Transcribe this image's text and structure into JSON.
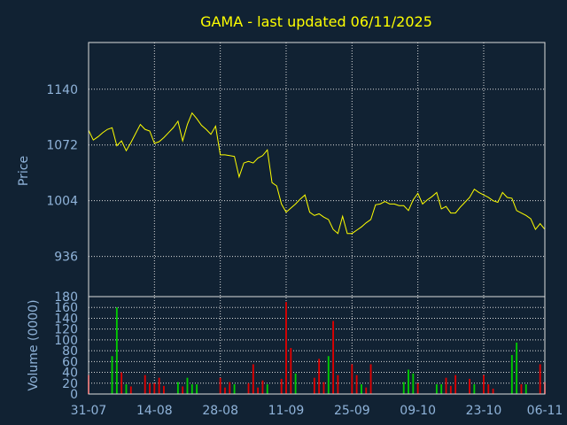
{
  "chart_data": {
    "type": "line",
    "title": "GAMA - last updated 06/11/2025",
    "colors": {
      "background": "#112233",
      "grid": "#dddddd",
      "price_line": "#ffff00",
      "volume_up": "#00cc00",
      "volume_down": "#dd0000",
      "text": "#8fb3d9",
      "title": "#ffff00"
    },
    "price_panel": {
      "ylabel": "Price",
      "ylim": [
        887,
        1197
      ],
      "yticks": [
        {
          "value": 936,
          "label": "936"
        },
        {
          "value": 1004,
          "label": "1004"
        },
        {
          "value": 1072,
          "label": "1072"
        },
        {
          "value": 1140,
          "label": "1140"
        }
      ],
      "series": [
        {
          "x": [
            0,
            1,
            2,
            3,
            4,
            5,
            6,
            7,
            8,
            9,
            10,
            11,
            12,
            13,
            14,
            15,
            16,
            17,
            18,
            19,
            20,
            21,
            22,
            23,
            24,
            25,
            26,
            27,
            28,
            29,
            30,
            31,
            32,
            33,
            34,
            35,
            36,
            37,
            38,
            39,
            40,
            41,
            42,
            43,
            44,
            45,
            46,
            47,
            48,
            49,
            50,
            51,
            52,
            53,
            54,
            55,
            56,
            57,
            58,
            59,
            60,
            61,
            62,
            63,
            64,
            65,
            66,
            67,
            68,
            69,
            70,
            71,
            72,
            73,
            74,
            75,
            76,
            77,
            78,
            79,
            80,
            81,
            82,
            83,
            84,
            85,
            86,
            87,
            88,
            89,
            90,
            91,
            92,
            93,
            94,
            95,
            96,
            97
          ],
          "values": [
            1090,
            1078,
            1082,
            1087,
            1091,
            1093,
            1071,
            1077,
            1065,
            1075,
            1086,
            1097,
            1091,
            1089,
            1074,
            1076,
            1081,
            1087,
            1093,
            1101,
            1077,
            1097,
            1111,
            1104,
            1096,
            1091,
            1085,
            1095,
            1060,
            1060,
            1059,
            1058,
            1033,
            1050,
            1052,
            1050,
            1056,
            1059,
            1066,
            1026,
            1022,
            1000,
            990,
            995,
            1000,
            1006,
            1011,
            990,
            986,
            988,
            984,
            981,
            969,
            964,
            985,
            964,
            964,
            968,
            972,
            977,
            981,
            999,
            1000,
            1003,
            1000,
            1000,
            998,
            998,
            992,
            1005,
            1013,
            1000,
            1005,
            1009,
            1014,
            994,
            997,
            989,
            989,
            996,
            1002,
            1008,
            1018,
            1014,
            1011,
            1008,
            1004,
            1002,
            1014,
            1008,
            1007,
            992,
            989,
            986,
            982,
            969,
            976,
            969
          ]
        }
      ]
    },
    "volume_panel": {
      "ylabel": "Volume (0000)",
      "ylim": [
        0,
        180
      ],
      "yticks": [
        {
          "value": 0,
          "label": "0"
        },
        {
          "value": 20,
          "label": "20"
        },
        {
          "value": 40,
          "label": "40"
        },
        {
          "value": 60,
          "label": "60"
        },
        {
          "value": 80,
          "label": "80"
        },
        {
          "value": 100,
          "label": "100"
        },
        {
          "value": 120,
          "label": "120"
        },
        {
          "value": 140,
          "label": "140"
        },
        {
          "value": 160,
          "label": "160"
        },
        {
          "value": 180,
          "label": "180"
        }
      ],
      "values": [
        35,
        0,
        0,
        0,
        0,
        70,
        160,
        40,
        18,
        14,
        0,
        0,
        35,
        20,
        20,
        30,
        15,
        0,
        0,
        22,
        14,
        30,
        18,
        18,
        0,
        0,
        0,
        0,
        30,
        12,
        22,
        18,
        0,
        0,
        20,
        55,
        12,
        25,
        18,
        0,
        0,
        28,
        170,
        85,
        38,
        0,
        0,
        0,
        30,
        65,
        22,
        70,
        135,
        35,
        0,
        0,
        55,
        35,
        18,
        12,
        55,
        0,
        0,
        0,
        0,
        0,
        0,
        22,
        45,
        38,
        20,
        0,
        0,
        0,
        18,
        18,
        30,
        15,
        35,
        0,
        0,
        28,
        18,
        0,
        35,
        18,
        10,
        0,
        0,
        0,
        72,
        95,
        18,
        18,
        0,
        0,
        55,
        22
      ],
      "up": [
        false,
        false,
        false,
        false,
        false,
        true,
        true,
        false,
        true,
        false,
        false,
        false,
        false,
        false,
        false,
        false,
        false,
        false,
        false,
        true,
        false,
        true,
        true,
        true,
        false,
        false,
        false,
        false,
        false,
        false,
        false,
        true,
        false,
        false,
        false,
        false,
        false,
        false,
        true,
        false,
        false,
        false,
        false,
        false,
        true,
        false,
        false,
        false,
        false,
        false,
        false,
        true,
        false,
        false,
        false,
        false,
        false,
        false,
        true,
        false,
        false,
        false,
        false,
        false,
        false,
        false,
        false,
        true,
        true,
        true,
        false,
        false,
        false,
        false,
        true,
        true,
        false,
        false,
        false,
        false,
        false,
        false,
        true,
        false,
        false,
        false,
        false,
        false,
        false,
        false,
        true,
        true,
        false,
        true,
        false,
        false,
        false,
        false
      ]
    },
    "xticks": [
      {
        "index": 0,
        "label": "31-07"
      },
      {
        "index": 14,
        "label": "14-08"
      },
      {
        "index": 28,
        "label": "28-08"
      },
      {
        "index": 42,
        "label": "11-09"
      },
      {
        "index": 56,
        "label": "25-09"
      },
      {
        "index": 70,
        "label": "09-10"
      },
      {
        "index": 84,
        "label": "23-10"
      },
      {
        "index": 97,
        "label": "06-11"
      }
    ]
  }
}
